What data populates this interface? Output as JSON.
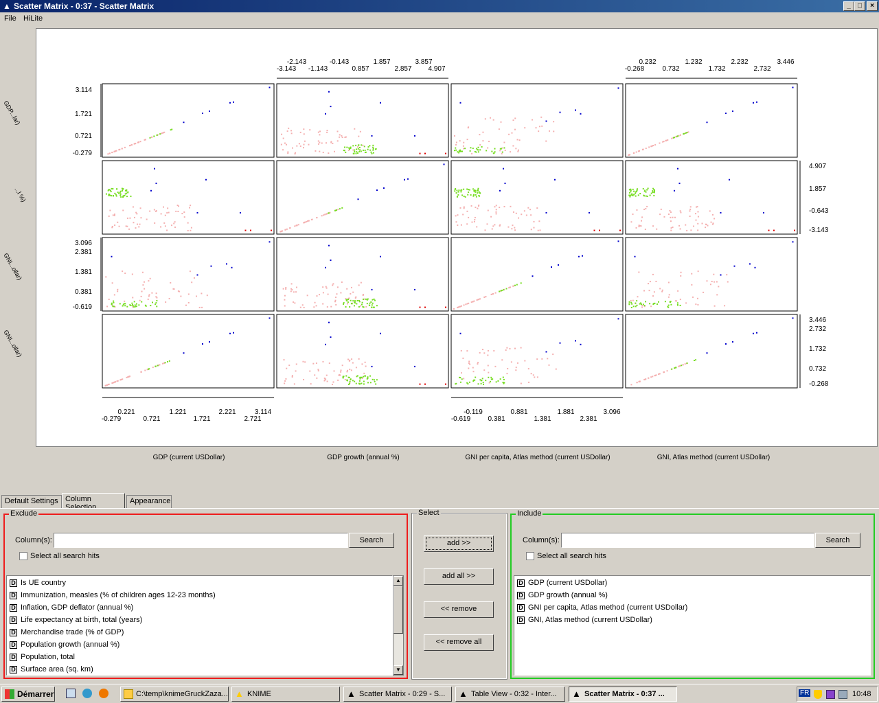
{
  "window": {
    "title": "Scatter Matrix - 0:37 - Scatter Matrix",
    "min": "_",
    "max": "□",
    "close": "×"
  },
  "menu": {
    "file": "File",
    "hilite": "HiLite"
  },
  "matrix": {
    "columns": [
      "GDP (current USDollar)",
      "GDP growth (annual %)",
      "GNI per capita, Atlas method (current USDollar)",
      "GNI, Atlas method (current USDollar)"
    ],
    "row_labels": [
      "GDP...lar)",
      "...l %)",
      "GNI...ollar)",
      "GNI...ollar)"
    ],
    "top_axis_col2_top": [
      "-2.143",
      "-0.143",
      "1.857",
      "3.857"
    ],
    "top_axis_col2_bottom": [
      "-3.143",
      "-1.143",
      "0.857",
      "2.857",
      "4.907"
    ],
    "top_axis_col4_top": [
      "0.232",
      "1.232",
      "2.232",
      "3.446"
    ],
    "top_axis_col4_bottom": [
      "-0.268",
      "0.732",
      "1.732",
      "2.732"
    ],
    "left_axis_row1": [
      "3.114",
      "1.721",
      "0.721",
      "-0.279"
    ],
    "right_axis_row2": [
      "4.907",
      "1.857",
      "-0.643",
      "-3.143"
    ],
    "left_axis_row3": [
      "3.096",
      "2.381",
      "1.381",
      "0.381",
      "-0.619"
    ],
    "right_axis_row4": [
      "3.446",
      "2.732",
      "1.732",
      "0.732",
      "-0.268"
    ],
    "bottom_axis_col1_top": [
      "0.221",
      "1.221",
      "2.221",
      "3.114"
    ],
    "bottom_axis_col1_bottom": [
      "-0.279",
      "0.721",
      "1.721",
      "2.721"
    ],
    "bottom_axis_col3_top": [
      "-0.119",
      "0.881",
      "1.881",
      "3.096"
    ],
    "bottom_axis_col3_bottom": [
      "-0.619",
      "0.381",
      "1.381",
      "2.381"
    ]
  },
  "tabs": [
    "Default Settings",
    "Column Selection",
    "Appearance"
  ],
  "exclude": {
    "legend": "Exclude",
    "columns_label": "Column(s):",
    "search": "Search",
    "select_all": "Select all search hits",
    "items": [
      "Is UE country",
      "Immunization, measles (% of children ages 12-23 months)",
      "Inflation, GDP deflator (annual %)",
      "Life expectancy at birth, total (years)",
      "Merchandise trade (% of GDP)",
      "Population growth (annual %)",
      "Population, total",
      "Surface area (sq. km)"
    ]
  },
  "select": {
    "legend": "Select",
    "add": "add >>",
    "add_all": "add all >>",
    "remove": "<< remove",
    "remove_all": "<< remove all"
  },
  "include": {
    "legend": "Include",
    "columns_label": "Column(s):",
    "search": "Search",
    "select_all": "Select all search hits",
    "items": [
      "GDP (current USDollar)",
      "GDP growth (annual %)",
      "GNI per capita, Atlas method (current USDollar)",
      "GNI, Atlas method (current USDollar)"
    ]
  },
  "colors": {
    "exclude_border": "#ee1c1c",
    "include_border": "#22cc22",
    "blue_point": "#0000cc",
    "red_point": "#dd0000",
    "green_point": "#77dd22",
    "pink_point": "#f4b0b0"
  },
  "taskbar": {
    "start": "Démarrer",
    "items": [
      "C:\\temp\\knimeGruckZaza...",
      "KNIME",
      "Scatter Matrix - 0:29 - S...",
      "Table View - 0:32 - Inter...",
      "Scatter Matrix - 0:37 ..."
    ],
    "lang": "FR",
    "clock": "10:48"
  }
}
